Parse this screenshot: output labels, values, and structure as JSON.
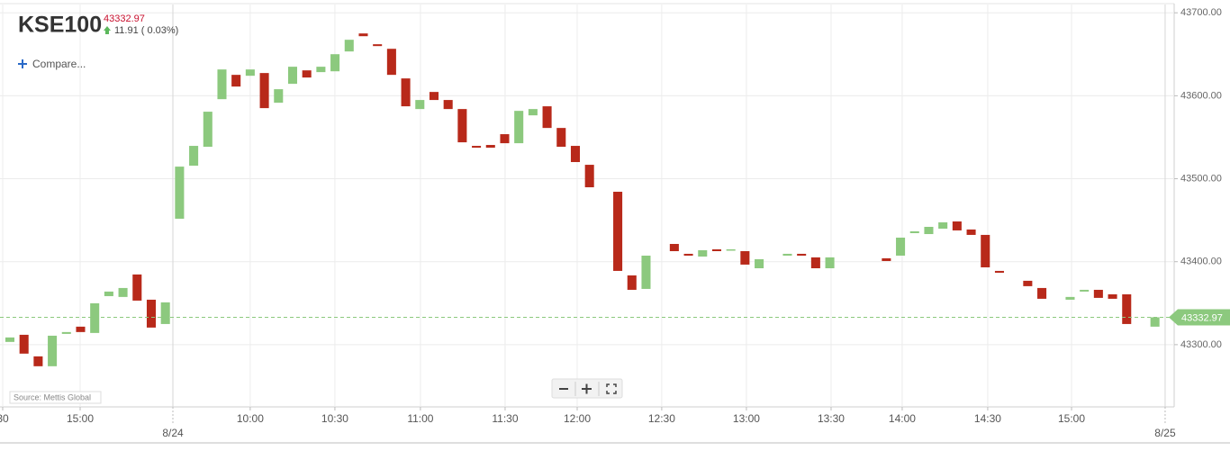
{
  "chart_data": {
    "type": "candlestick",
    "title": "KSE100",
    "last_price": 43332.97,
    "change_label": "11.91 ( 0.03%)",
    "compare_label": "Compare...",
    "source": "Source: Mettis Global",
    "up_color": "#8cc97e",
    "down_color": "#b8291a",
    "grid": true,
    "categories": [
      null,
      null,
      null,
      null,
      null,
      null,
      null,
      null,
      null,
      null,
      null,
      null,
      null,
      null,
      null,
      null,
      null,
      null,
      null,
      null,
      null,
      null,
      null,
      null,
      null,
      null,
      null,
      null,
      null,
      null,
      null,
      null,
      null,
      null,
      null,
      null,
      null,
      null,
      null,
      null,
      null,
      null,
      null,
      null,
      null,
      null,
      null,
      null,
      null,
      null,
      null,
      null,
      null,
      null,
      null,
      null,
      null,
      null,
      null,
      null,
      null,
      null,
      null,
      null,
      null,
      null,
      null,
      null,
      null,
      null,
      null,
      null,
      null,
      null,
      null,
      null,
      null,
      null,
      null,
      null,
      null,
      null
    ],
    "open": [
      43303.3,
      43311.9,
      43285.9,
      43274.0,
      43313.0,
      43321.7,
      43314.1,
      43358.5,
      43357.5,
      43384.6,
      43354.2,
      43324.9,
      43451.8,
      43515.7,
      43538.5,
      43595.9,
      43625.2,
      43624.1,
      43627.4,
      43591.6,
      43614.4,
      43630.6,
      43628.5,
      43629.5,
      43653.4,
      43675.1,
      43662.1,
      43656.6,
      43620.9,
      43584.0,
      43604.6,
      43594.9,
      43584.0,
      43539.6,
      43540.7,
      43553.7,
      43542.8,
      43576.4,
      43587.3,
      43561.2,
      43539.6,
      43516.8,
      null,
      43484.3,
      43383.5,
      43367.2,
      null,
      43421.4,
      43409.5,
      43406.2,
      43414.9,
      43413.8,
      43412.7,
      43392.1,
      null,
      43407.3,
      43409.5,
      43405.2,
      43392.1,
      null,
      null,
      null,
      43404.1,
      43407.3,
      43434.4,
      43433.3,
      43439.8,
      43448.5,
      43438.8,
      43432.3,
      43388.9,
      null,
      43377.0,
      43368.3,
      null,
      43354.2,
      43364.0,
      43366.1,
      43360.7,
      43360.7,
      null,
      43321.7
    ],
    "close": [
      43308.7,
      43289.2,
      43274.0,
      43310.8,
      43315.2,
      43315.2,
      43349.9,
      43364.0,
      43368.3,
      43353.1,
      43320.6,
      43351.0,
      43514.6,
      43539.6,
      43580.8,
      43631.7,
      43611.1,
      43631.7,
      43585.1,
      43607.9,
      43635.0,
      43622.0,
      43635.0,
      43650.1,
      43667.5,
      43671.8,
      43659.9,
      43625.2,
      43587.3,
      43594.9,
      43594.9,
      43584.0,
      43543.9,
      43537.4,
      43537.4,
      43542.8,
      43581.8,
      43584.0,
      43561.2,
      43538.5,
      43520.1,
      43489.7,
      null,
      43388.9,
      43366.1,
      43407.3,
      null,
      43412.7,
      43407.3,
      43413.8,
      43412.7,
      43414.9,
      43396.5,
      43403.0,
      null,
      43409.5,
      43407.3,
      43392.1,
      43405.2,
      null,
      null,
      null,
      43400.8,
      43429.0,
      43436.6,
      43442.0,
      43447.4,
      43437.7,
      43432.3,
      43393.2,
      43386.7,
      null,
      43370.5,
      43355.3,
      null,
      43357.5,
      43366.1,
      43356.4,
      43355.3,
      43324.9,
      null,
      43333.0
    ],
    "xlim": [
      -0.7,
      81.85
    ],
    "xticks": [
      {
        "value": -0.51,
        "label": "30"
      },
      {
        "value": 4.97,
        "label": "15:00"
      },
      {
        "value": 17.0,
        "label": "10:00"
      },
      {
        "value": 22.99,
        "label": "10:30"
      },
      {
        "value": 29.04,
        "label": "11:00"
      },
      {
        "value": 35.03,
        "label": "11:30"
      },
      {
        "value": 40.13,
        "label": "12:00"
      },
      {
        "value": 46.11,
        "label": "12:30"
      },
      {
        "value": 52.1,
        "label": "13:00"
      },
      {
        "value": 58.09,
        "label": "13:30"
      },
      {
        "value": 63.12,
        "label": "14:00"
      },
      {
        "value": 69.17,
        "label": "14:30"
      },
      {
        "value": 75.1,
        "label": "15:00"
      }
    ],
    "date_ticks": [
      {
        "value": 11.53,
        "label": "8/24"
      },
      {
        "value": 81.72,
        "label": "8/25"
      }
    ],
    "ylim": [
      43225,
      43710
    ],
    "yticks": [
      {
        "value": 43300,
        "label": "43300.00"
      },
      {
        "value": 43400,
        "label": "43400.00"
      },
      {
        "value": 43500,
        "label": "43500.00"
      },
      {
        "value": 43600,
        "label": "43600.00"
      },
      {
        "value": 43700,
        "label": "43700.00"
      }
    ]
  }
}
